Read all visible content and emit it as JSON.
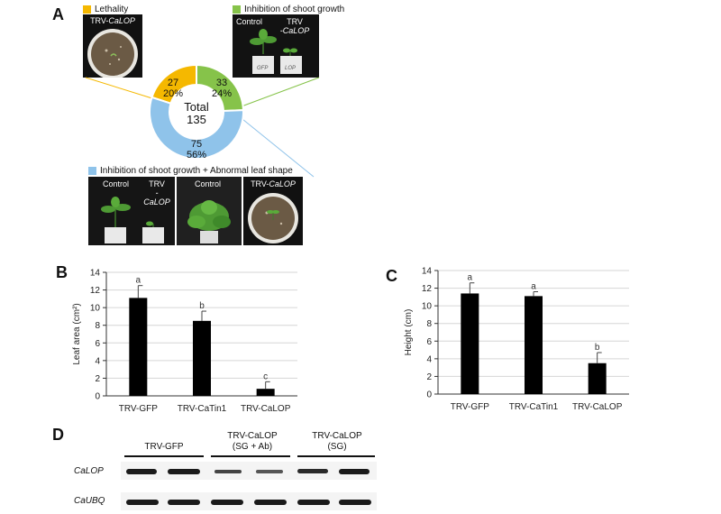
{
  "panels": {
    "a": "A",
    "b": "B",
    "c": "C",
    "d": "D"
  },
  "panel_a": {
    "legend_lethality": "Lethality",
    "legend_inhibition": "Inhibition of shoot growth",
    "legend_combined": "Inhibition of shoot growth + Abnormal leaf shape",
    "colors": {
      "lethality": "#f5b800",
      "inhibition": "#86c34a",
      "combined": "#8fc3ea"
    },
    "donut": {
      "center_line1": "Total",
      "center_line2": "135",
      "segments": [
        {
          "key": "lethality",
          "count": "27",
          "percent": "20%",
          "value": 27
        },
        {
          "key": "inhibition",
          "count": "33",
          "percent": "24%",
          "value": 33
        },
        {
          "key": "combined",
          "count": "75",
          "percent": "56%",
          "value": 75
        }
      ]
    },
    "photo_labels": {
      "lethality_trv": "TRV-",
      "lethality_gene": "CaLOP",
      "inhib_control": "Control",
      "inhib_trv": "TRV",
      "inhib_gene": "-CaLOP",
      "comb_control1": "Control",
      "comb_trv": "TRV",
      "comb_gene": "-CaLOP",
      "comb_control2": "Control",
      "comb_trv2": "TRV-",
      "comb_gene2": "CaLOP",
      "pot_gfp": "GFP",
      "pot_lop": "LOP"
    }
  },
  "chart_data": [
    {
      "type": "bar",
      "panel": "B",
      "categories": [
        "TRV-GFP",
        "TRV-CaTin1",
        "TRV-CaLOP"
      ],
      "values": [
        11.1,
        8.5,
        0.8
      ],
      "errors": [
        1.4,
        1.1,
        0.8
      ],
      "significance": [
        "a",
        "b",
        "c"
      ],
      "ylabel": "Leaf area (cm²)",
      "ylim": [
        0,
        14
      ],
      "yticks": [
        "0",
        "2",
        "4",
        "6",
        "8",
        "10",
        "12",
        "14"
      ],
      "grid": true
    },
    {
      "type": "bar",
      "panel": "C",
      "categories": [
        "TRV-GFP",
        "TRV-CaTin1",
        "TRV-CaLOP"
      ],
      "values": [
        11.4,
        11.1,
        3.5
      ],
      "errors": [
        1.2,
        0.5,
        1.2
      ],
      "significance": [
        "a",
        "a",
        "b"
      ],
      "ylabel": "Height (cm)",
      "ylim": [
        0,
        14
      ],
      "yticks": [
        "0",
        "2",
        "4",
        "6",
        "8",
        "10",
        "12",
        "14"
      ],
      "grid": true
    }
  ],
  "panel_d": {
    "group1": "TRV-GFP",
    "group2_line1": "TRV-CaLOP",
    "group2_line2": "(SG + Ab)",
    "group3_line1": "TRV-CaLOP",
    "group3_line2": "(SG)",
    "gene1": "CaLOP",
    "gene2": "CaUBQ"
  }
}
